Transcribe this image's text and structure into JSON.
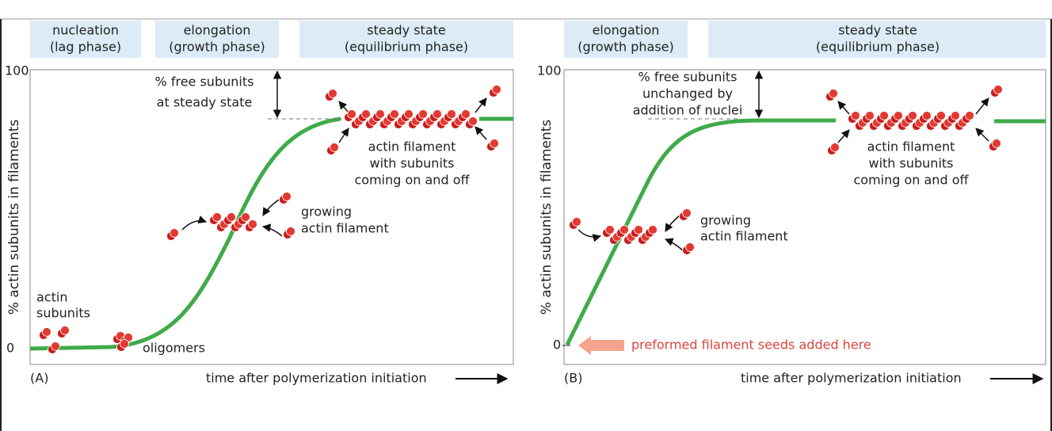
{
  "panel_a": {
    "phases": [
      [
        "nucleation",
        "(lag phase)"
      ],
      [
        "elongation",
        "(growth phase)"
      ],
      [
        "steady state",
        "(equilibrium phase)"
      ]
    ],
    "y_axis_label": "% actin subunits in filaments",
    "y_ticks": [
      100,
      0
    ],
    "free_subunits": [
      "% free subunits",
      "at steady state"
    ],
    "filament": [
      "actin filament",
      "with subunits",
      "coming on and off"
    ],
    "growing": [
      "growing",
      "actin filament"
    ],
    "subunits": [
      "actin",
      "subunits"
    ],
    "oligomers": "oligomers",
    "panel_label": "(A)",
    "x_axis_label": "time after polymerization initiation"
  },
  "panel_b": {
    "phases": [
      [
        "elongation",
        "(growth phase)"
      ],
      [
        "steady state",
        "(equilibrium phase)"
      ]
    ],
    "y_axis_label": "% actin subunits in filaments",
    "y_ticks": [
      100,
      0
    ],
    "free_subunits": [
      "% free subunits",
      "unchanged by",
      "addition of nuclei"
    ],
    "filament": [
      "actin filament",
      "with subunits",
      "coming on and off"
    ],
    "growing": [
      "growing",
      "actin filament"
    ],
    "seeds": "preformed filament seeds added here",
    "panel_label": "(B)",
    "x_axis_label": "time after polymerization initiation"
  }
}
